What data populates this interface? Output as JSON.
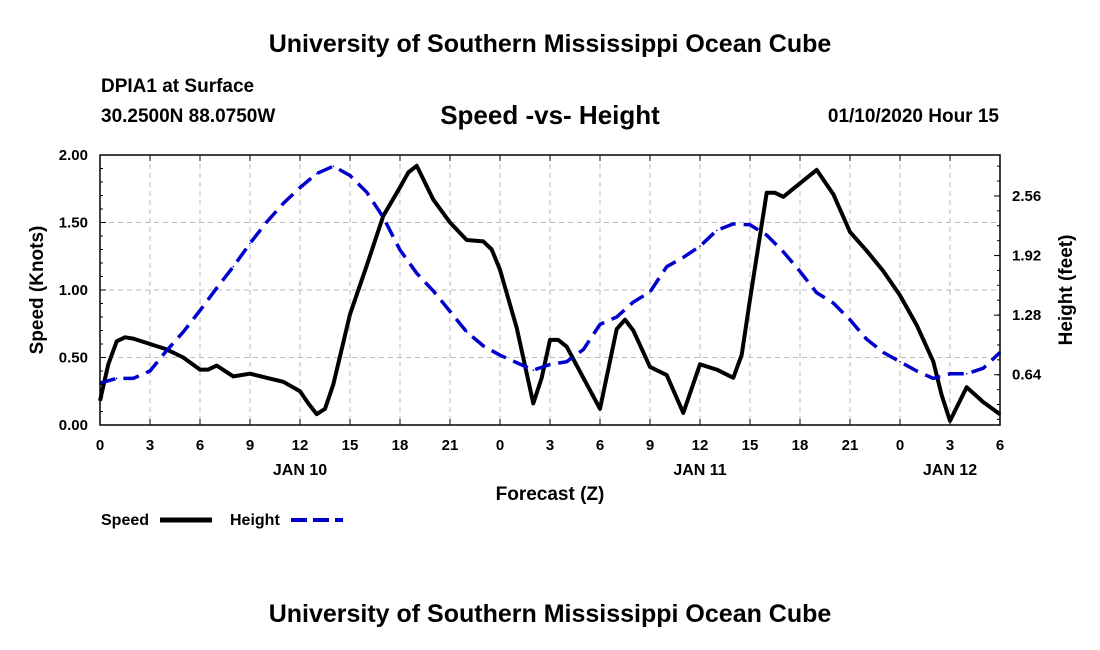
{
  "header": {
    "title": "University of Southern Mississippi Ocean Cube",
    "station": "DPIA1 at Surface",
    "coords": "30.2500N 88.0750W",
    "chart_title": "Speed -vs- Height",
    "datetime": "01/10/2020 Hour 15"
  },
  "footer": {
    "title": "University of Southern Mississippi Ocean Cube"
  },
  "colors": {
    "speed": "#000000",
    "height": "#0000cc",
    "grid": "#bbbbbb"
  },
  "chart_data": {
    "type": "line",
    "title": "Speed -vs- Height",
    "xlabel": "Forecast (Z)",
    "ylabel": "Speed (Knots)",
    "y2label": "Height (feet)",
    "x_range": [
      0,
      54
    ],
    "ylim": [
      0,
      2.0
    ],
    "y2lim": [
      0.1,
      3.0
    ],
    "x_ticks": [
      0,
      3,
      6,
      9,
      12,
      15,
      18,
      21,
      24,
      27,
      30,
      33,
      36,
      39,
      42,
      45,
      48,
      51,
      54
    ],
    "x_tick_labels": [
      "0",
      "3",
      "6",
      "9",
      "12",
      "15",
      "18",
      "21",
      "0",
      "3",
      "6",
      "9",
      "12",
      "15",
      "18",
      "21",
      "0",
      "3",
      "6"
    ],
    "y_ticks": [
      0,
      0.5,
      1.0,
      1.5,
      2.0
    ],
    "y_tick_labels": [
      "0.00",
      "0.50",
      "1.00",
      "1.50",
      "2.00"
    ],
    "y2_ticks": [
      0.64,
      1.28,
      1.92,
      2.56
    ],
    "y2_tick_labels": [
      "0.64",
      "1.28",
      "1.92",
      "2.56"
    ],
    "day_labels": [
      {
        "x": 12,
        "label": "JAN 10"
      },
      {
        "x": 36,
        "label": "JAN 11"
      },
      {
        "x": 51,
        "label": "JAN 12"
      }
    ],
    "grid": true,
    "legend": [
      {
        "name": "Speed",
        "style": "solid"
      },
      {
        "name": "Height",
        "style": "dashed"
      }
    ],
    "series": [
      {
        "name": "Speed",
        "axis": "left",
        "style": "solid",
        "x": [
          0,
          0.5,
          1,
          1.5,
          2,
          3,
          4,
          5,
          6,
          6.5,
          7,
          8,
          9,
          10,
          11,
          12,
          12.5,
          13,
          13.5,
          14,
          15,
          16,
          17,
          18,
          18.5,
          19,
          20,
          21,
          22,
          23,
          23.5,
          24,
          25,
          26,
          26.5,
          27,
          27.5,
          28,
          29,
          30,
          31,
          31.5,
          32,
          33,
          34,
          35,
          36,
          37,
          38,
          38.5,
          39,
          40,
          40.5,
          41,
          42,
          43,
          44,
          45,
          46,
          47,
          48,
          49,
          50,
          50.5,
          51,
          52,
          53,
          54
        ],
        "values": [
          0.18,
          0.45,
          0.62,
          0.65,
          0.64,
          0.6,
          0.56,
          0.5,
          0.41,
          0.41,
          0.44,
          0.36,
          0.38,
          0.35,
          0.32,
          0.25,
          0.16,
          0.08,
          0.12,
          0.3,
          0.82,
          1.18,
          1.55,
          1.76,
          1.87,
          1.92,
          1.67,
          1.5,
          1.37,
          1.36,
          1.3,
          1.15,
          0.72,
          0.16,
          0.35,
          0.63,
          0.63,
          0.58,
          0.35,
          0.12,
          0.71,
          0.78,
          0.7,
          0.43,
          0.37,
          0.09,
          0.45,
          0.41,
          0.35,
          0.52,
          0.93,
          1.72,
          1.72,
          1.69,
          1.79,
          1.89,
          1.71,
          1.43,
          1.29,
          1.14,
          0.96,
          0.74,
          0.47,
          0.22,
          0.03,
          0.28,
          0.17,
          0.08
        ]
      },
      {
        "name": "Height",
        "axis": "right",
        "style": "dashed",
        "x": [
          0,
          1,
          2,
          3,
          4,
          5,
          6,
          7,
          8,
          9,
          10,
          11,
          12,
          13,
          14,
          15,
          16,
          17,
          18,
          19,
          20,
          21,
          22,
          23,
          24,
          25,
          26,
          27,
          28,
          29,
          30,
          31,
          32,
          33,
          34,
          35,
          36,
          37,
          38,
          39,
          40,
          41,
          42,
          43,
          44,
          45,
          46,
          47,
          48,
          49,
          50,
          51,
          52,
          53,
          54
        ],
        "values": [
          0.55,
          0.6,
          0.6,
          0.68,
          0.9,
          1.1,
          1.33,
          1.57,
          1.8,
          2.05,
          2.28,
          2.48,
          2.65,
          2.8,
          2.88,
          2.78,
          2.6,
          2.33,
          1.98,
          1.73,
          1.54,
          1.32,
          1.1,
          0.95,
          0.85,
          0.77,
          0.69,
          0.75,
          0.78,
          0.91,
          1.18,
          1.26,
          1.42,
          1.53,
          1.8,
          1.9,
          2.02,
          2.19,
          2.26,
          2.25,
          2.14,
          1.96,
          1.75,
          1.52,
          1.41,
          1.23,
          1.02,
          0.88,
          0.78,
          0.68,
          0.6,
          0.65,
          0.65,
          0.71,
          0.88
        ]
      }
    ]
  }
}
